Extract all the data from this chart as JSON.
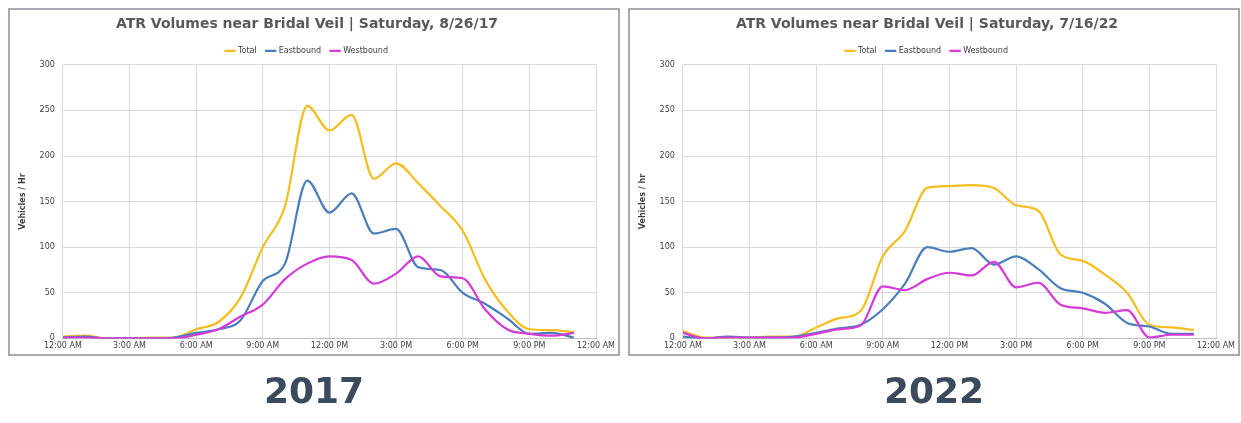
{
  "chart_data": [
    {
      "type": "line",
      "title": "ATR Volumes near Bridal Veil | Saturday, 8/26/17",
      "ylabel": "Vehicles / Hr",
      "x": [
        0,
        1,
        2,
        3,
        4,
        5,
        6,
        7,
        8,
        9,
        10,
        11,
        12,
        13,
        14,
        15,
        16,
        17,
        18,
        19,
        20,
        21,
        22,
        23
      ],
      "series": [
        {
          "name": "Total",
          "color": "#f5bd1f",
          "values": [
            2,
            3,
            0,
            0,
            1,
            1,
            10,
            18,
            45,
            100,
            145,
            255,
            228,
            245,
            175,
            192,
            170,
            145,
            118,
            65,
            30,
            10,
            9,
            7
          ]
        },
        {
          "name": "Eastbound",
          "color": "#4a7ebb",
          "values": [
            1,
            2,
            0,
            0,
            0,
            1,
            6,
            10,
            20,
            63,
            82,
            173,
            138,
            159,
            115,
            120,
            78,
            75,
            50,
            38,
            22,
            5,
            6,
            1
          ]
        },
        {
          "name": "Westbound",
          "color": "#d63ad6",
          "values": [
            1,
            1,
            0,
            0,
            0,
            0,
            4,
            10,
            24,
            37,
            65,
            82,
            90,
            86,
            60,
            71,
            90,
            68,
            66,
            32,
            10,
            5,
            3,
            6
          ]
        }
      ],
      "xlim": [
        0,
        24
      ],
      "xticks": [
        {
          "value": 0,
          "label": "12:00 AM"
        },
        {
          "value": 3,
          "label": "3:00 AM"
        },
        {
          "value": 6,
          "label": "6:00 AM"
        },
        {
          "value": 9,
          "label": "9:00 AM"
        },
        {
          "value": 12,
          "label": "12:00 PM"
        },
        {
          "value": 15,
          "label": "3:00 PM"
        },
        {
          "value": 18,
          "label": "6:00 PM"
        },
        {
          "value": 21,
          "label": "9:00 PM"
        },
        {
          "value": 24,
          "label": "12:00 AM"
        }
      ],
      "ylim": [
        0,
        300
      ],
      "yticks": [
        0,
        50,
        100,
        150,
        200,
        250,
        300
      ],
      "grid": true,
      "legend": "top",
      "marker": "none",
      "annotations": [
        "2017"
      ]
    },
    {
      "type": "line",
      "title": "ATR Volumes near Bridal Veil | Saturday, 7/16/22",
      "ylabel": "Vehicles / hr",
      "x": [
        0,
        1,
        2,
        3,
        4,
        5,
        6,
        7,
        8,
        9,
        10,
        11,
        12,
        13,
        14,
        15,
        16,
        17,
        18,
        19,
        20,
        21,
        22,
        23
      ],
      "series": [
        {
          "name": "Total",
          "color": "#f5bd1f",
          "values": [
            8,
            1,
            1,
            1,
            2,
            2,
            12,
            22,
            30,
            90,
            118,
            165,
            167,
            168,
            165,
            146,
            140,
            92,
            85,
            70,
            50,
            15,
            12,
            9
          ]
        },
        {
          "name": "Eastbound",
          "color": "#4a7ebb",
          "values": [
            2,
            0,
            2,
            1,
            1,
            2,
            6,
            11,
            15,
            32,
            60,
            100,
            95,
            99,
            81,
            90,
            76,
            55,
            50,
            38,
            17,
            13,
            5,
            5
          ]
        },
        {
          "name": "Westbound",
          "color": "#d63ad6",
          "values": [
            6,
            0,
            1,
            1,
            1,
            1,
            5,
            10,
            14,
            57,
            53,
            65,
            72,
            69,
            84,
            56,
            61,
            37,
            33,
            28,
            31,
            1,
            4,
            4
          ]
        }
      ],
      "xlim": [
        0,
        24
      ],
      "xticks": [
        {
          "value": 0,
          "label": "12:00 AM"
        },
        {
          "value": 3,
          "label": "3:00 AM"
        },
        {
          "value": 6,
          "label": "6:00 AM"
        },
        {
          "value": 9,
          "label": "9:00 AM"
        },
        {
          "value": 12,
          "label": "12:00 PM"
        },
        {
          "value": 15,
          "label": "3:00 PM"
        },
        {
          "value": 18,
          "label": "6:00 PM"
        },
        {
          "value": 21,
          "label": "9:00 PM"
        },
        {
          "value": 24,
          "label": "12:00 AM"
        }
      ],
      "ylim": [
        0,
        300
      ],
      "yticks": [
        0,
        50,
        100,
        150,
        200,
        250,
        300
      ],
      "grid": true,
      "legend": "top",
      "marker": "none",
      "annotations": [
        "2022"
      ]
    }
  ]
}
